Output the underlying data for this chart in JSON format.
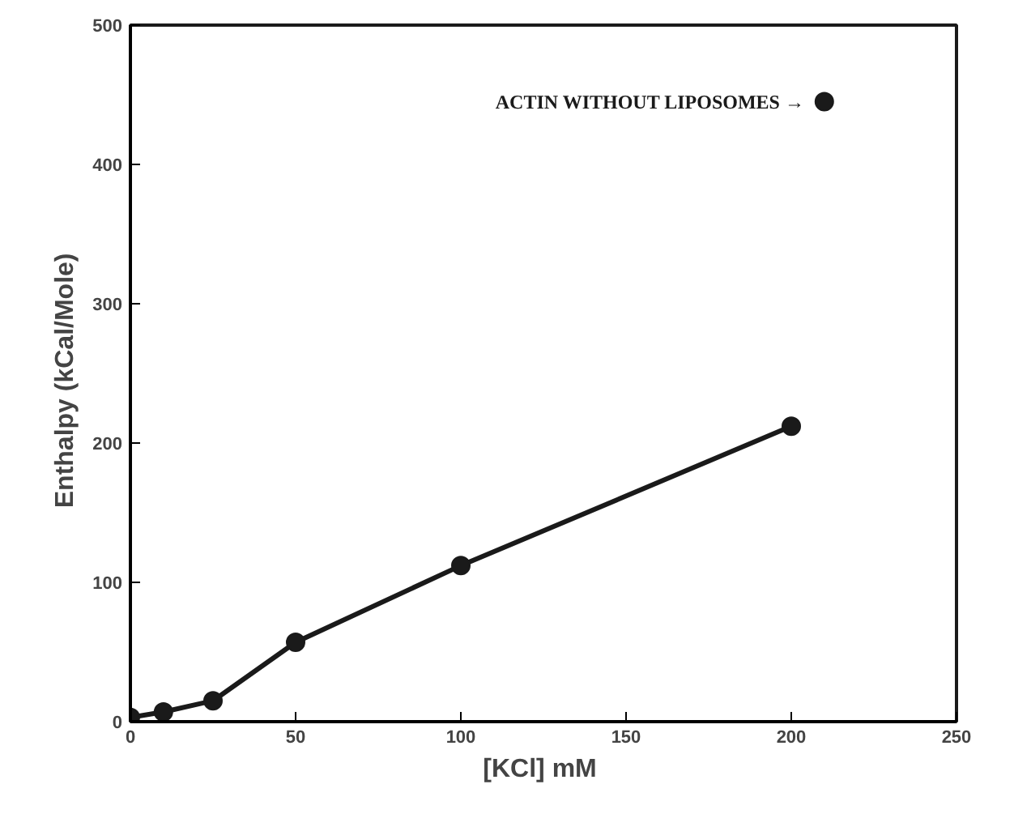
{
  "chart_data": {
    "type": "line",
    "xlabel": "[KCl]  mM",
    "ylabel": "Enthalpy   (kCal/Mole)",
    "xlim": [
      0,
      250
    ],
    "ylim": [
      0,
      500
    ],
    "xticks": [
      0,
      50,
      100,
      150,
      200,
      250
    ],
    "yticks": [
      0,
      100,
      200,
      300,
      400,
      500
    ],
    "grid": false,
    "marker": "circle",
    "line_style": "solid",
    "series": [
      {
        "color": "#1a1a1a",
        "x": [
          0,
          10,
          25,
          50,
          100,
          200
        ],
        "values": [
          3,
          7,
          15,
          57,
          112,
          212
        ]
      },
      {
        "type": "scatter",
        "color": "#1a1a1a",
        "x": [
          210
        ],
        "values": [
          445
        ]
      }
    ],
    "annotations": [
      {
        "text": "ACTIN WITHOUT LIPOSOMES →",
        "x": 210,
        "y": 445
      }
    ]
  }
}
